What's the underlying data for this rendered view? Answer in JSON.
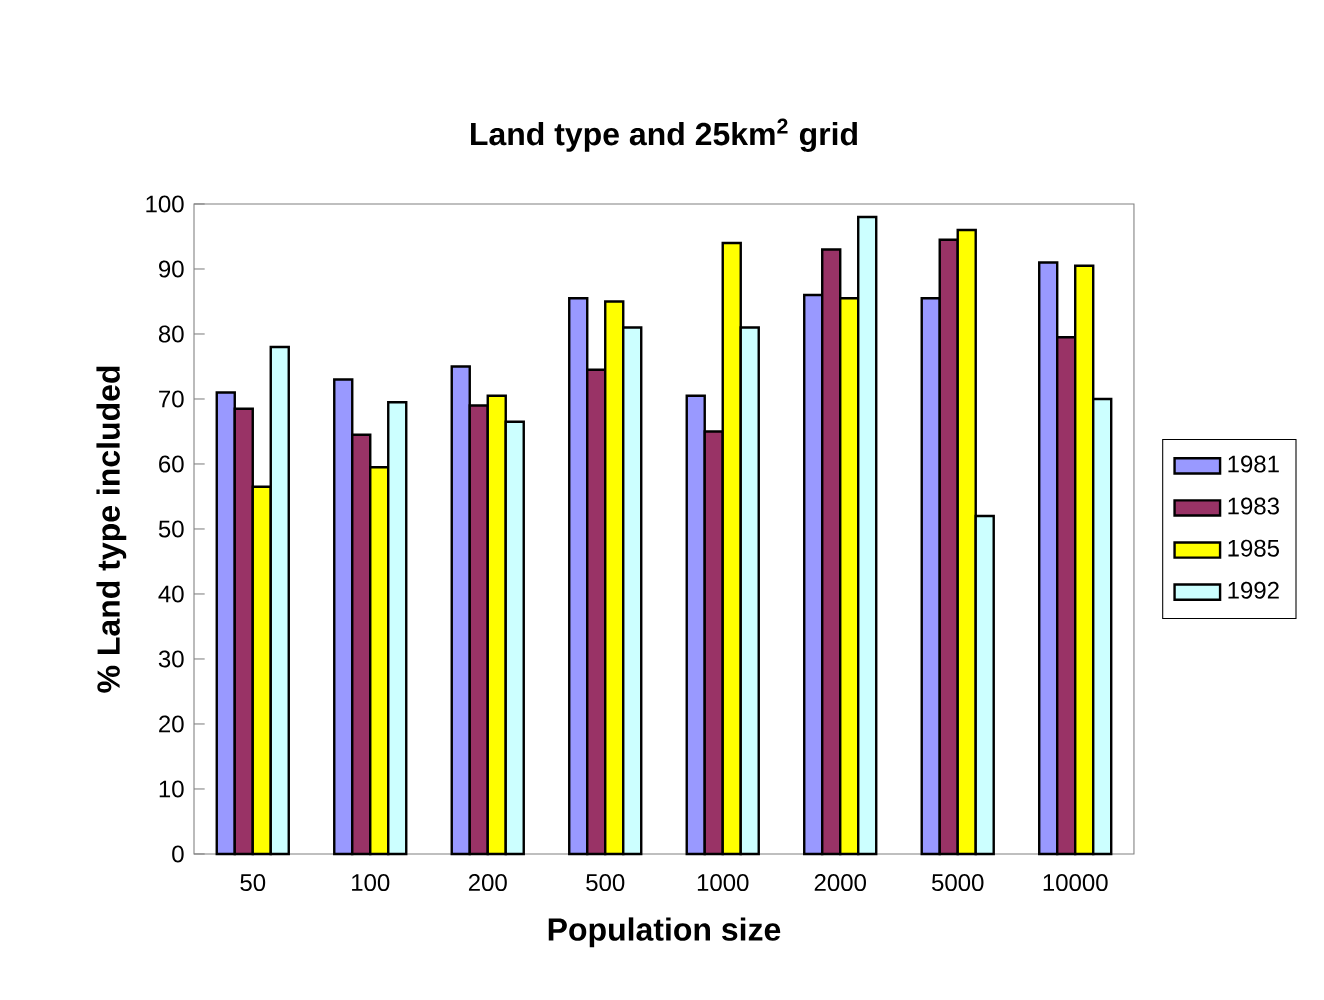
{
  "chart_data": {
    "type": "bar",
    "title": "Land type and 25km$^{2}$ grid",
    "xlabel": "Population size",
    "ylabel": "% Land type included",
    "categories": [
      "50",
      "100",
      "200",
      "500",
      "1000",
      "2000",
      "5000",
      "10000"
    ],
    "series": [
      {
        "name": "1981",
        "color": "#9999ff",
        "values": [
          71,
          73,
          75,
          85.5,
          70.5,
          86,
          85.5,
          91
        ]
      },
      {
        "name": "1983",
        "color": "#993366",
        "values": [
          68.5,
          64.5,
          69,
          74.5,
          65,
          93,
          94.5,
          79.5
        ]
      },
      {
        "name": "1985",
        "color": "#ffff00",
        "values": [
          56.5,
          59.5,
          70.5,
          85,
          94,
          85.5,
          96,
          90.5
        ]
      },
      {
        "name": "1992",
        "color": "#ccffff",
        "values": [
          78,
          69.5,
          66.5,
          81,
          81,
          98,
          52,
          70
        ]
      }
    ],
    "ylim": [
      0,
      100
    ],
    "yticks": [
      0,
      10,
      20,
      30,
      40,
      50,
      60,
      70,
      80,
      90,
      100
    ],
    "legend": "right"
  }
}
